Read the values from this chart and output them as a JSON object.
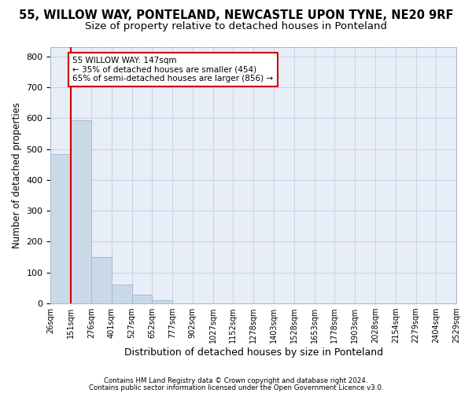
{
  "title1": "55, WILLOW WAY, PONTELAND, NEWCASTLE UPON TYNE, NE20 9RF",
  "title2": "Size of property relative to detached houses in Ponteland",
  "xlabel": "Distribution of detached houses by size in Ponteland",
  "ylabel": "Number of detached properties",
  "bar_values": [
    484,
    592,
    150,
    62,
    27,
    10,
    0,
    0,
    0,
    0,
    0,
    0,
    0,
    0,
    0,
    0,
    0,
    0,
    0,
    0
  ],
  "bin_edges": [
    26,
    151,
    276,
    401,
    527,
    652,
    777,
    902,
    1027,
    1152,
    1278,
    1403,
    1528,
    1653,
    1778,
    1903,
    2028,
    2154,
    2279,
    2404,
    2529
  ],
  "tick_labels": [
    "26sqm",
    "151sqm",
    "276sqm",
    "401sqm",
    "527sqm",
    "652sqm",
    "777sqm",
    "902sqm",
    "1027sqm",
    "1152sqm",
    "1278sqm",
    "1403sqm",
    "1528sqm",
    "1653sqm",
    "1778sqm",
    "1903sqm",
    "2028sqm",
    "2154sqm",
    "2279sqm",
    "2404sqm",
    "2529sqm"
  ],
  "bar_color": "#c9d9e8",
  "bar_edge_color": "#a0b8cc",
  "vline_x_bin_index": 1,
  "vline_color": "#cc0000",
  "ylim": [
    0,
    830
  ],
  "yticks": [
    0,
    100,
    200,
    300,
    400,
    500,
    600,
    700,
    800
  ],
  "grid_color": "#c8d4e4",
  "bg_color": "#e8eef8",
  "annotation_text": "55 WILLOW WAY: 147sqm\n← 35% of detached houses are smaller (454)\n65% of semi-detached houses are larger (856) →",
  "annotation_box_color": "white",
  "annotation_border_color": "#cc0000",
  "footer1": "Contains HM Land Registry data © Crown copyright and database right 2024.",
  "footer2": "Contains public sector information licensed under the Open Government Licence v3.0.",
  "title1_fontsize": 10.5,
  "title2_fontsize": 9.5,
  "tick_fontsize": 7,
  "ylabel_fontsize": 8.5,
  "xlabel_fontsize": 9
}
